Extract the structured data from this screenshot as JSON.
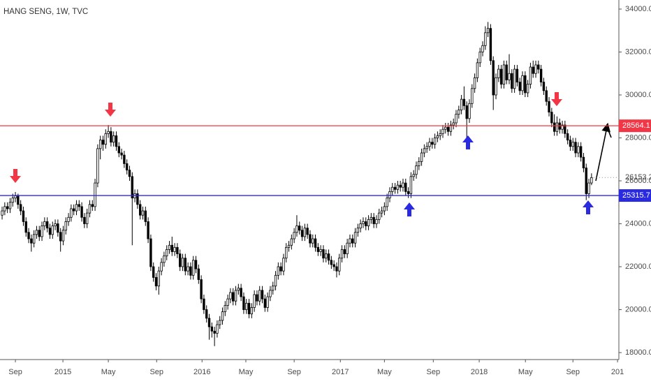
{
  "chart_data": {
    "type": "candlestick",
    "title": "HANG SENG, 1W, TVC",
    "up_color": "#ffffff",
    "down_color": "#000000",
    "edge_color": "#000000",
    "open": [
      24400,
      24600,
      24800,
      24700,
      25000,
      25200,
      25300,
      24900,
      24600,
      24100,
      23600,
      23300,
      23100,
      23500,
      23700,
      23400,
      23900,
      24100,
      23800,
      23500,
      23900,
      24000,
      23600,
      23200,
      23700,
      24100,
      24300,
      24700,
      24600,
      24900,
      24800,
      24300,
      24000,
      24500,
      24900,
      24800,
      25900,
      27500,
      27900,
      27700,
      28200,
      28300,
      27800,
      28100,
      27600,
      27300,
      27200,
      26800,
      26500,
      26200,
      25200,
      25400,
      24900,
      24400,
      24600,
      24100,
      23300,
      22000,
      21500,
      21100,
      21800,
      22200,
      22500,
      22800,
      23000,
      22700,
      22900,
      22600,
      22000,
      22400,
      21800,
      22000,
      21600,
      22300,
      21900,
      21400,
      20500,
      20000,
      19600,
      19200,
      19000,
      18900,
      19300,
      19500,
      19900,
      20200,
      20500,
      20800,
      20400,
      20900,
      21000,
      20600,
      20000,
      20300,
      19800,
      20100,
      20700,
      20400,
      20900,
      20500,
      20100,
      20600,
      20900,
      21100,
      21600,
      22000,
      21800,
      22400,
      22900,
      23000,
      23300,
      23600,
      23900,
      23700,
      23400,
      23800,
      23500,
      23100,
      23300,
      22900,
      22700,
      22800,
      22400,
      22600,
      22300,
      22100,
      22000,
      21800,
      22400,
      22800,
      22600,
      23100,
      23300,
      23100,
      23600,
      23800,
      24000,
      24100,
      23900,
      24200,
      24300,
      24000,
      24200,
      24500,
      24600,
      24800,
      25200,
      25500,
      25700,
      25600,
      25800,
      25700,
      25900,
      25500,
      25400,
      26200,
      26300,
      26700,
      26900,
      27300,
      27500,
      27600,
      27800,
      27700,
      28000,
      28100,
      28200,
      28400,
      28500,
      28300,
      28600,
      28700,
      29100,
      29300,
      29800,
      29500,
      28900,
      29600,
      30300,
      30800,
      31500,
      32000,
      32300,
      32900,
      33100,
      31600,
      30000,
      30800,
      31200,
      30500,
      31400,
      30700,
      31000,
      30300,
      31200,
      30600,
      30200,
      30900,
      30100,
      30500,
      31300,
      31000,
      31400,
      31200,
      30600,
      30200,
      29700,
      29200,
      28700,
      28300,
      28700,
      28400,
      28600,
      28200,
      27900,
      27600,
      27800,
      27300,
      27600,
      27100,
      26600,
      25400,
      25900
    ],
    "high": [
      24800,
      25000,
      25000,
      25200,
      25400,
      25480,
      25400,
      25100,
      24800,
      24300,
      23800,
      23500,
      23700,
      23900,
      23900,
      24100,
      24300,
      24300,
      24000,
      24100,
      24200,
      24200,
      23800,
      23900,
      24300,
      24500,
      24900,
      24900,
      25100,
      25100,
      25000,
      24500,
      24700,
      25100,
      25100,
      26100,
      27700,
      28100,
      28100,
      28400,
      28600,
      28500,
      28300,
      28300,
      27800,
      27500,
      27400,
      27000,
      26700,
      26400,
      25600,
      25600,
      25100,
      24800,
      24800,
      24300,
      23500,
      22200,
      21700,
      22000,
      22400,
      22700,
      23000,
      23200,
      23400,
      23100,
      23100,
      22800,
      22600,
      22600,
      22200,
      22200,
      22500,
      22500,
      22100,
      21600,
      20700,
      20200,
      19800,
      19400,
      19200,
      19500,
      19700,
      20100,
      20400,
      20700,
      21000,
      21000,
      21100,
      21200,
      21200,
      20800,
      20500,
      20500,
      20300,
      20900,
      20900,
      21100,
      21100,
      20700,
      20800,
      21100,
      21300,
      21800,
      22200,
      22200,
      22600,
      23100,
      23200,
      23500,
      23800,
      24400,
      24100,
      23900,
      24000,
      24000,
      23700,
      23500,
      23500,
      23100,
      23000,
      23000,
      22800,
      22800,
      22500,
      22300,
      22200,
      22600,
      23000,
      23000,
      23300,
      23500,
      23500,
      23800,
      24000,
      24200,
      24300,
      24300,
      24400,
      24500,
      24500,
      24400,
      24700,
      24800,
      25000,
      25400,
      25700,
      25900,
      25900,
      26000,
      26000,
      26100,
      26100,
      25700,
      26400,
      26500,
      26900,
      27100,
      27500,
      27700,
      27800,
      28000,
      28000,
      28200,
      28300,
      28400,
      28600,
      28700,
      28700,
      28800,
      28900,
      29300,
      29500,
      30000,
      30400,
      29700,
      29800,
      30500,
      31000,
      31700,
      32200,
      32500,
      33200,
      33400,
      33300,
      31800,
      31000,
      31400,
      31400,
      31600,
      31600,
      31900,
      31200,
      31400,
      31400,
      30800,
      31100,
      31100,
      30700,
      31500,
      31600,
      31600,
      31600,
      31400,
      30800,
      30400,
      29900,
      29400,
      29100,
      29000,
      28900,
      28800,
      28800,
      28400,
      28100,
      28000,
      28000,
      27800,
      27800,
      27300,
      26800,
      26100,
      26350
    ],
    "low": [
      24200,
      24400,
      24500,
      24500,
      24800,
      25000,
      24700,
      24400,
      23900,
      23400,
      23100,
      22700,
      22900,
      23300,
      23200,
      23200,
      23700,
      23600,
      23300,
      23300,
      23700,
      23400,
      22700,
      23000,
      23500,
      23900,
      24100,
      24400,
      24400,
      24600,
      24100,
      23800,
      23800,
      24300,
      24600,
      24600,
      25700,
      27000,
      27400,
      27500,
      28000,
      27600,
      27600,
      27400,
      27100,
      27000,
      26600,
      26300,
      26000,
      23000,
      25000,
      24700,
      24200,
      24200,
      23900,
      23100,
      21800,
      21300,
      20900,
      20700,
      21600,
      22000,
      22300,
      22600,
      22500,
      22500,
      22400,
      21800,
      21800,
      21600,
      21600,
      21400,
      21400,
      21700,
      21200,
      20300,
      19800,
      19400,
      18600,
      18700,
      18300,
      18700,
      19100,
      19300,
      19700,
      20000,
      20300,
      20200,
      20200,
      20700,
      20400,
      19800,
      19800,
      19600,
      19600,
      19900,
      20200,
      20200,
      20300,
      19900,
      19900,
      20400,
      20700,
      20900,
      21400,
      21600,
      21600,
      22200,
      22700,
      22800,
      23100,
      23400,
      23500,
      23200,
      23200,
      23300,
      22900,
      22900,
      22700,
      22500,
      22500,
      22200,
      22200,
      22100,
      21900,
      21800,
      21500,
      21600,
      22200,
      22400,
      22400,
      22900,
      22900,
      22900,
      23400,
      23600,
      23800,
      23700,
      23700,
      24000,
      23800,
      23800,
      24000,
      24300,
      24400,
      24600,
      25000,
      25300,
      25400,
      25400,
      25500,
      25500,
      25300,
      25200,
      25200,
      26000,
      26100,
      26500,
      26700,
      27100,
      27300,
      27400,
      27500,
      27500,
      27800,
      27900,
      28000,
      28200,
      28100,
      28100,
      28400,
      28500,
      28900,
      29100,
      29300,
      28000,
      28700,
      29400,
      30100,
      30600,
      31300,
      31800,
      32100,
      32700,
      31400,
      29300,
      29800,
      30600,
      30300,
      30300,
      30500,
      30500,
      30100,
      30100,
      30400,
      30000,
      30000,
      29900,
      29900,
      30300,
      30800,
      30800,
      31000,
      30400,
      30000,
      29500,
      29000,
      28500,
      28100,
      28100,
      28200,
      28200,
      28000,
      27700,
      27400,
      27400,
      27100,
      27100,
      26900,
      26400,
      25100,
      25200,
      25800
    ],
    "close": [
      24600,
      24800,
      24700,
      25000,
      25200,
      25300,
      24900,
      24600,
      24100,
      23600,
      23300,
      23100,
      23500,
      23700,
      23400,
      23900,
      24100,
      23800,
      23500,
      23900,
      24000,
      23600,
      23200,
      23700,
      24100,
      24300,
      24700,
      24600,
      24900,
      24800,
      24300,
      24000,
      24500,
      24900,
      24800,
      25900,
      27500,
      27900,
      27700,
      28200,
      28300,
      27800,
      28100,
      27600,
      27300,
      27200,
      26800,
      26500,
      26200,
      25200,
      25400,
      24900,
      24400,
      24600,
      24100,
      23300,
      22000,
      21500,
      21100,
      21800,
      22200,
      22500,
      22800,
      23000,
      22700,
      22900,
      22600,
      22000,
      22400,
      21800,
      22000,
      21600,
      22300,
      21900,
      21400,
      20500,
      20000,
      19600,
      19200,
      19000,
      18900,
      19300,
      19500,
      19900,
      20200,
      20500,
      20800,
      20400,
      20900,
      21000,
      20600,
      20000,
      20300,
      19800,
      20100,
      20700,
      20400,
      20900,
      20500,
      20100,
      20600,
      20900,
      21100,
      21600,
      22000,
      21800,
      22400,
      22900,
      23000,
      23300,
      23600,
      23900,
      23700,
      23400,
      23800,
      23500,
      23100,
      23300,
      22900,
      22700,
      22800,
      22400,
      22600,
      22300,
      22100,
      22000,
      21800,
      22400,
      22800,
      22600,
      23100,
      23300,
      23100,
      23600,
      23800,
      24000,
      24100,
      23900,
      24200,
      24300,
      24000,
      24200,
      24500,
      24600,
      24800,
      25200,
      25500,
      25700,
      25600,
      25800,
      25700,
      25900,
      25500,
      25400,
      26200,
      26300,
      26700,
      26900,
      27300,
      27500,
      27600,
      27800,
      27700,
      28000,
      28100,
      28200,
      28400,
      28500,
      28300,
      28600,
      28700,
      29100,
      29300,
      29800,
      29500,
      28900,
      29600,
      30300,
      30800,
      31500,
      32000,
      32300,
      32900,
      33100,
      31600,
      30000,
      30800,
      31200,
      30500,
      31400,
      30700,
      31000,
      30300,
      31200,
      30600,
      30200,
      30900,
      30100,
      30500,
      31300,
      31000,
      31400,
      31200,
      30600,
      30200,
      29700,
      29200,
      28700,
      28300,
      28700,
      28400,
      28600,
      28200,
      27900,
      27600,
      27800,
      27300,
      27600,
      27100,
      26600,
      25400,
      25900,
      26153.2
    ],
    "xlim": [
      -0.8,
      232.3
    ],
    "xticks": [
      {
        "value": 5,
        "label": "Sep"
      },
      {
        "value": 22.9,
        "label": "2015"
      },
      {
        "value": 40,
        "label": "May"
      },
      {
        "value": 58.2,
        "label": "Sep"
      },
      {
        "value": 75.3,
        "label": "2016"
      },
      {
        "value": 91.8,
        "label": "May"
      },
      {
        "value": 110,
        "label": "Sep"
      },
      {
        "value": 127.4,
        "label": "2017"
      },
      {
        "value": 144,
        "label": "May"
      },
      {
        "value": 162.4,
        "label": "Sep"
      },
      {
        "value": 179.7,
        "label": "2018"
      },
      {
        "value": 197.1,
        "label": "May"
      },
      {
        "value": 215,
        "label": "Sep"
      },
      {
        "value": 231.8,
        "label": "201"
      }
    ],
    "ylim": [
      17675,
      34423
    ],
    "yticks": [
      {
        "value": 18000,
        "label": "18000.0"
      },
      {
        "value": 20000,
        "label": "20000.0"
      },
      {
        "value": 22000,
        "label": "22000.0"
      },
      {
        "value": 24000,
        "label": "24000.0"
      },
      {
        "value": 26000,
        "label": "26000.0"
      },
      {
        "value": 28000,
        "label": "28000.0"
      },
      {
        "value": 30000,
        "label": "30000.0"
      },
      {
        "value": 32000,
        "label": "32000.0"
      },
      {
        "value": 34000,
        "label": "34000.0"
      }
    ],
    "hlines": [
      {
        "value": 28564.1,
        "color": "#f23645"
      },
      {
        "value": 25315.7,
        "color": "#2a2ae0"
      }
    ],
    "grid": false
  }
}
